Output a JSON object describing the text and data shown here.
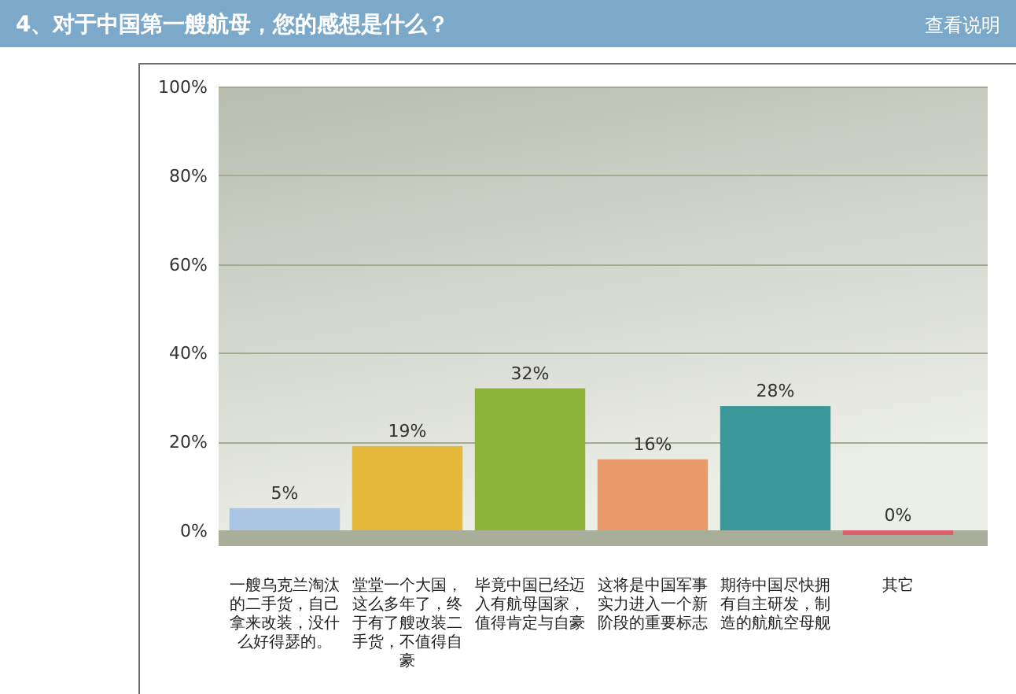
{
  "chart_data": {
    "type": "bar",
    "title": "4、对于中国第一艘航母，您的感想是什么？",
    "categories": [
      "一艘乌克兰淘汰的二手货，自己拿来改装，没什么好得瑟的。",
      "堂堂一个大国，这么多年了，终于有了艘改装二手货，不值得自豪",
      "毕竟中国已经迈入有航母国家，值得肯定与自豪",
      "这将是中国军事实力进入一个新阶段的重要标志",
      "期待中国尽快拥有自主研发，制造的航航空母舰",
      "其它"
    ],
    "values": [
      5,
      19,
      32,
      16,
      28,
      0
    ],
    "colors": [
      "#a9c5e2",
      "#e6b83c",
      "#8db33a",
      "#e99a6a",
      "#3a9898",
      "#d9606c"
    ],
    "value_labels": [
      "5%",
      "19%",
      "32%",
      "16%",
      "28%",
      "0%"
    ],
    "ylim": [
      0,
      100
    ],
    "yticks": [
      {
        "value": 0,
        "label": "0%"
      },
      {
        "value": 20,
        "label": "20%"
      },
      {
        "value": 40,
        "label": "40%"
      },
      {
        "value": 60,
        "label": "60%"
      },
      {
        "value": 80,
        "label": "80%"
      },
      {
        "value": 100,
        "label": "100%"
      }
    ],
    "grid": "y",
    "annotations": [
      "查看说明"
    ]
  }
}
